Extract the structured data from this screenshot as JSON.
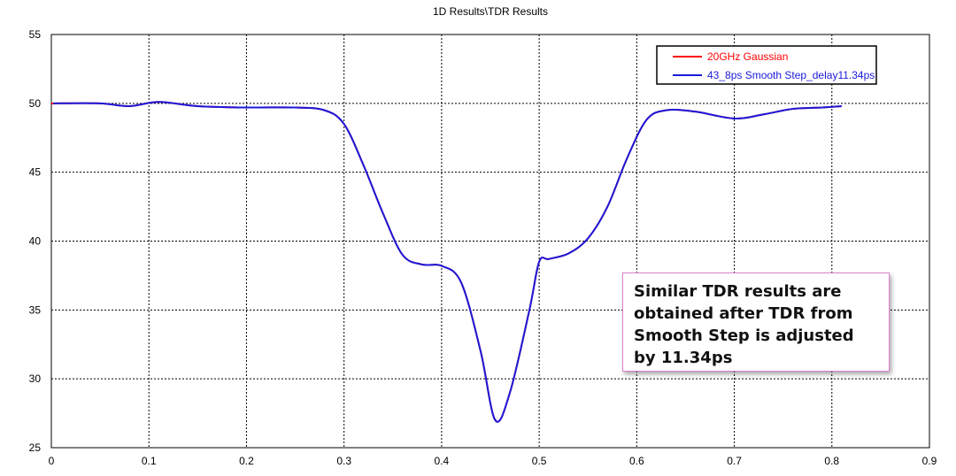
{
  "chart_data": {
    "type": "line",
    "title": "1D Results\\TDR Results",
    "xlabel": "",
    "ylabel": "",
    "xlim": [
      0,
      0.9
    ],
    "ylim": [
      25,
      55
    ],
    "x_ticks": [
      "0",
      "0.1",
      "0.2",
      "0.3",
      "0.4",
      "0.5",
      "0.6",
      "0.7",
      "0.8",
      "0.9"
    ],
    "y_ticks": [
      "25",
      "30",
      "35",
      "40",
      "45",
      "50",
      "55"
    ],
    "grid": true,
    "legend_position": "top-right",
    "series": [
      {
        "name": "20GHz Gaussian",
        "color": "#ff0000",
        "x": [
          0,
          0.05,
          0.08,
          0.11,
          0.15,
          0.2,
          0.25,
          0.28,
          0.3,
          0.32,
          0.34,
          0.36,
          0.38,
          0.4,
          0.42,
          0.44,
          0.455,
          0.47,
          0.49,
          0.5,
          0.51,
          0.53,
          0.55,
          0.57,
          0.59,
          0.61,
          0.63,
          0.66,
          0.7,
          0.73,
          0.76,
          0.79,
          0.81
        ],
        "y": [
          50,
          50,
          49.8,
          50.1,
          49.8,
          49.7,
          49.7,
          49.5,
          48.5,
          45.5,
          42,
          39,
          38.3,
          38.2,
          37,
          32,
          27,
          29,
          35,
          38.5,
          38.7,
          39.1,
          40.2,
          42.5,
          46,
          48.8,
          49.5,
          49.4,
          48.9,
          49.2,
          49.6,
          49.7,
          49.8
        ]
      },
      {
        "name": "43_8ps Smooth Step_delay11.34ps",
        "color": "#1a1adc",
        "x": [
          0.002,
          0.05,
          0.08,
          0.11,
          0.15,
          0.2,
          0.25,
          0.28,
          0.3,
          0.32,
          0.34,
          0.36,
          0.38,
          0.4,
          0.42,
          0.44,
          0.455,
          0.47,
          0.49,
          0.5,
          0.51,
          0.53,
          0.55,
          0.57,
          0.59,
          0.61,
          0.63,
          0.66,
          0.7,
          0.73,
          0.76,
          0.79,
          0.81
        ],
        "y": [
          50,
          50,
          49.8,
          50.1,
          49.8,
          49.7,
          49.7,
          49.5,
          48.5,
          45.5,
          42,
          39,
          38.3,
          38.2,
          37,
          32,
          27,
          29,
          35,
          38.5,
          38.7,
          39.1,
          40.2,
          42.5,
          46,
          48.8,
          49.5,
          49.4,
          48.9,
          49.2,
          49.6,
          49.7,
          49.8
        ]
      }
    ]
  },
  "annotation": {
    "text": "Similar TDR results are obtained after TDR from Smooth Step is adjusted by 11.34ps"
  }
}
